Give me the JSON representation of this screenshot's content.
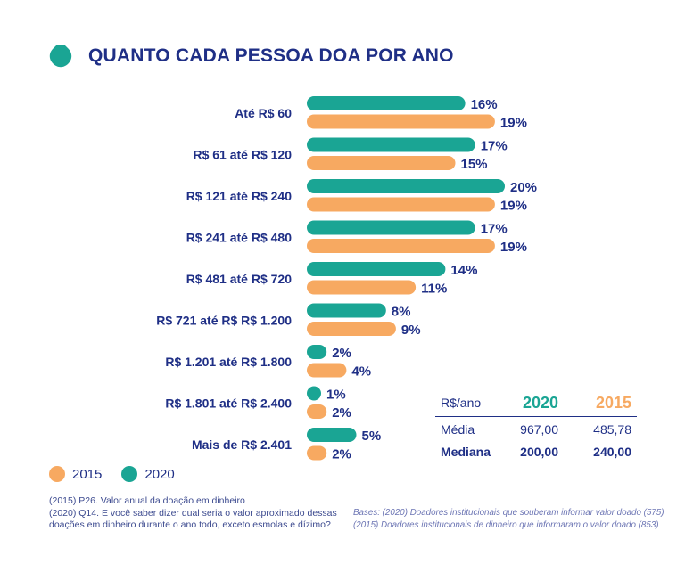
{
  "title": "QUANTO CADA PESSOA DOA POR ANO",
  "colors": {
    "series_2020": "#1aa594",
    "series_2015": "#f7a961",
    "text": "#1f2f86"
  },
  "chart_data": {
    "type": "bar",
    "orientation": "horizontal",
    "title": "QUANTO CADA PESSOA DOA POR ANO",
    "categories": [
      "Até R$ 60",
      "R$ 61 até R$ 120",
      "R$ 121 até R$ 240",
      "R$ 241 até R$ 480",
      "R$ 481 até R$ 720",
      "R$ 721 até R$ R$ 1.200",
      "R$ 1.201 até R$ 1.800",
      "R$ 1.801 até R$ 2.400",
      "Mais de R$ 2.401"
    ],
    "series": [
      {
        "name": "2020",
        "values": [
          16,
          17,
          20,
          17,
          14,
          8,
          2,
          1,
          5
        ],
        "labels": [
          "16%",
          "17%",
          "20%",
          "17%",
          "14%",
          "8%",
          "2%",
          "1%",
          "5%"
        ]
      },
      {
        "name": "2015",
        "values": [
          19,
          15,
          19,
          19,
          11,
          9,
          4,
          2,
          2
        ],
        "labels": [
          "19%",
          "15%",
          "19%",
          "19%",
          "11%",
          "9%",
          "4%",
          "2%",
          "2%"
        ]
      }
    ],
    "xlabel": "",
    "ylabel": "",
    "legend": "bottom-left"
  },
  "stats_table": {
    "header": {
      "label": "R$/ano",
      "col_2020": "2020",
      "col_2015": "2015"
    },
    "rows": [
      {
        "label": "Média",
        "v2020": "967,00",
        "v2015": "485,78"
      },
      {
        "label": "Mediana",
        "v2020": "200,00",
        "v2015": "240,00"
      }
    ]
  },
  "legend": {
    "item_2015": "2015",
    "item_2020": "2020"
  },
  "notes": {
    "left_1": "(2015) P26. Valor anual da doação em dinheiro",
    "left_2": "(2020) Q14. E você saber dizer qual seria o valor aproximado dessas doações em dinheiro durante o ano todo, exceto esmolas e dízimo?",
    "right_1": "Bases: (2020) Doadores institucionais que souberam informar valor doado (575)",
    "right_2": "(2015) Doadores institucionais de dinheiro que informaram o valor doado (853)"
  }
}
